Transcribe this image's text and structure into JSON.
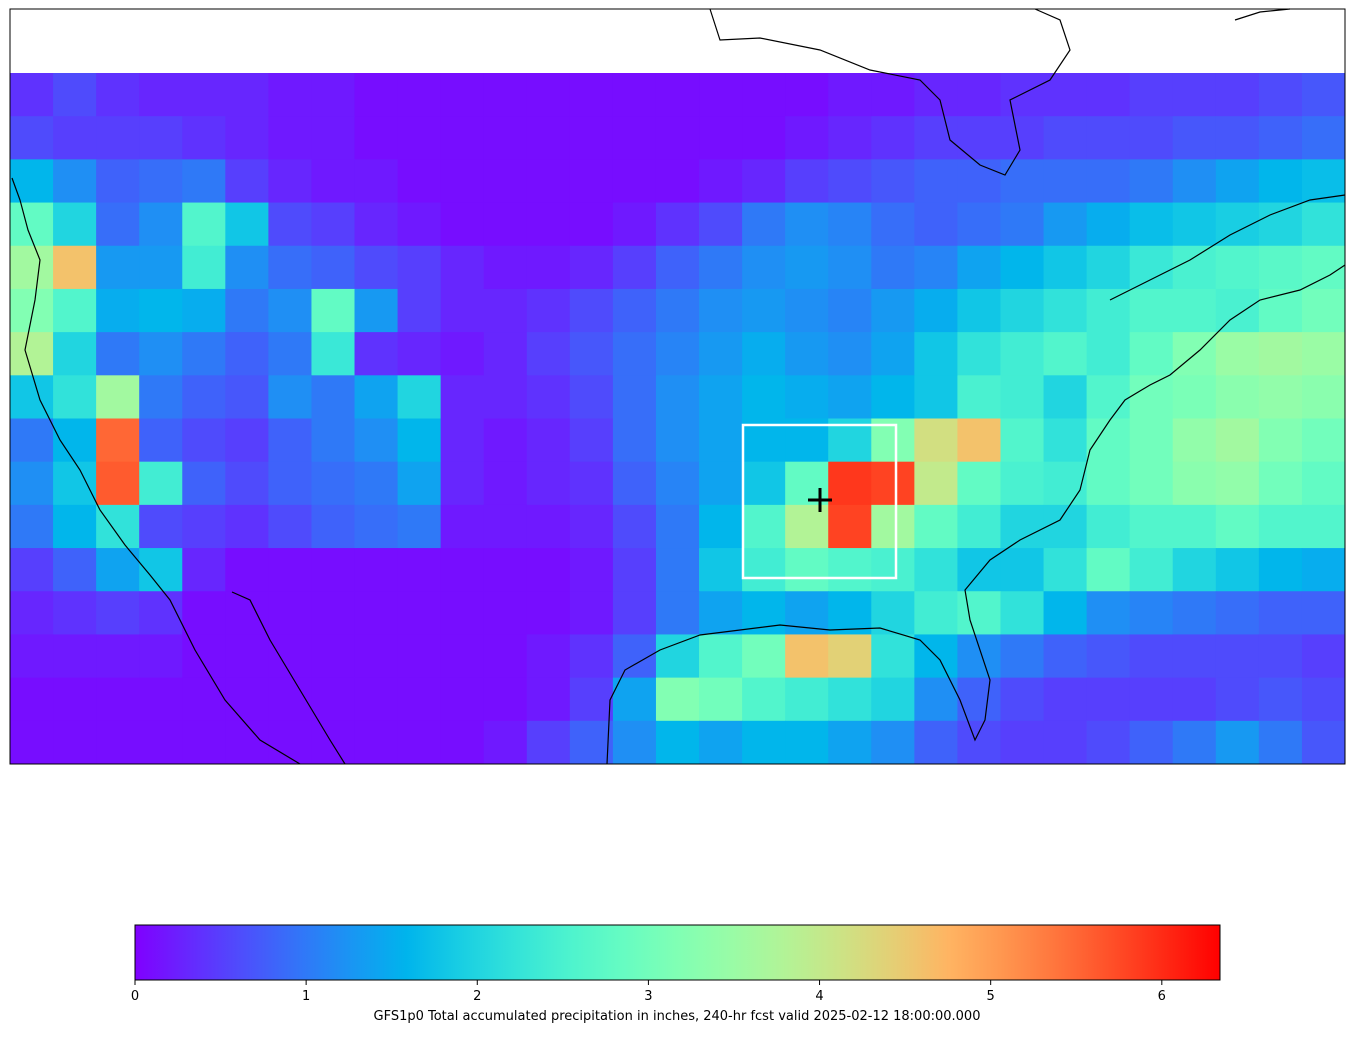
{
  "map": {
    "type": "heatmap",
    "colormap": "rainbow",
    "clim": [
      0,
      6.34
    ],
    "values": [
      [
        0.4,
        0.6,
        0.4,
        0.3,
        0.3,
        0.3,
        0.2,
        0.2,
        0.1,
        0.1,
        0.1,
        0.1,
        0.1,
        0.1,
        0.1,
        0.1,
        0.1,
        0.1,
        0.1,
        0.2,
        0.2,
        0.3,
        0.3,
        0.4,
        0.4,
        0.4,
        0.5,
        0.5,
        0.5,
        0.6,
        0.7
      ],
      [
        0.6,
        0.5,
        0.5,
        0.5,
        0.4,
        0.3,
        0.2,
        0.2,
        0.1,
        0.1,
        0.1,
        0.1,
        0.1,
        0.1,
        0.1,
        0.1,
        0.1,
        0.1,
        0.2,
        0.3,
        0.4,
        0.5,
        0.5,
        0.5,
        0.6,
        0.6,
        0.6,
        0.7,
        0.7,
        0.8,
        0.9
      ],
      [
        1.6,
        1.2,
        0.8,
        0.9,
        1.0,
        0.5,
        0.3,
        0.2,
        0.2,
        0.1,
        0.1,
        0.1,
        0.1,
        0.1,
        0.1,
        0.1,
        0.2,
        0.3,
        0.5,
        0.6,
        0.7,
        0.8,
        0.8,
        0.9,
        0.9,
        0.9,
        1.0,
        1.2,
        1.4,
        1.6,
        1.7
      ],
      [
        2.8,
        2.0,
        0.9,
        1.2,
        2.6,
        1.8,
        0.6,
        0.5,
        0.3,
        0.2,
        0.1,
        0.1,
        0.1,
        0.1,
        0.2,
        0.4,
        0.6,
        1.0,
        1.2,
        1.1,
        0.9,
        0.8,
        0.9,
        1.0,
        1.3,
        1.5,
        1.7,
        1.8,
        1.9,
        2.0,
        2.2
      ],
      [
        3.6,
        4.6,
        1.3,
        1.3,
        2.4,
        1.2,
        0.9,
        0.8,
        0.6,
        0.5,
        0.3,
        0.2,
        0.2,
        0.3,
        0.5,
        0.8,
        1.0,
        1.2,
        1.3,
        1.2,
        1.0,
        1.1,
        1.4,
        1.6,
        1.8,
        2.0,
        2.3,
        2.5,
        2.6,
        2.7,
        2.8
      ],
      [
        3.2,
        2.6,
        1.5,
        1.6,
        1.5,
        1.0,
        1.2,
        2.8,
        1.3,
        0.5,
        0.3,
        0.3,
        0.4,
        0.6,
        0.8,
        1.0,
        1.2,
        1.3,
        1.2,
        1.1,
        1.3,
        1.5,
        1.8,
        2.0,
        2.2,
        2.4,
        2.6,
        2.6,
        2.5,
        2.8,
        3.0
      ],
      [
        3.8,
        2.0,
        1.0,
        1.2,
        1.0,
        0.8,
        1.0,
        2.3,
        0.4,
        0.3,
        0.2,
        0.3,
        0.5,
        0.7,
        0.9,
        1.1,
        1.3,
        1.5,
        1.3,
        1.2,
        1.4,
        1.8,
        2.2,
        2.4,
        2.6,
        2.4,
        2.8,
        3.2,
        3.5,
        3.6,
        3.5
      ],
      [
        1.8,
        2.2,
        3.6,
        1.0,
        0.8,
        0.7,
        1.2,
        1.0,
        1.4,
        2.0,
        0.3,
        0.3,
        0.4,
        0.6,
        0.9,
        1.2,
        1.4,
        1.6,
        1.5,
        1.4,
        1.6,
        1.8,
        2.5,
        2.4,
        2.0,
        2.6,
        3.0,
        3.1,
        3.3,
        3.4,
        3.3
      ],
      [
        1.0,
        1.6,
        5.5,
        0.8,
        0.6,
        0.5,
        0.8,
        1.0,
        1.2,
        1.6,
        0.3,
        0.2,
        0.3,
        0.5,
        0.9,
        1.2,
        1.4,
        1.6,
        1.6,
        2.0,
        3.2,
        4.2,
        4.6,
        2.6,
        2.2,
        2.8,
        3.0,
        3.4,
        3.6,
        3.2,
        3.0
      ],
      [
        1.2,
        1.8,
        5.6,
        2.4,
        0.8,
        0.6,
        0.8,
        0.9,
        1.0,
        1.4,
        0.3,
        0.2,
        0.3,
        0.4,
        0.8,
        1.1,
        1.4,
        1.8,
        2.8,
        5.9,
        5.8,
        4.0,
        2.8,
        2.5,
        2.4,
        2.8,
        3.0,
        3.3,
        3.4,
        3.0,
        2.8
      ],
      [
        1.0,
        1.6,
        2.2,
        0.6,
        0.5,
        0.4,
        0.6,
        0.8,
        0.9,
        1.0,
        0.2,
        0.2,
        0.2,
        0.3,
        0.6,
        1.0,
        1.6,
        2.6,
        3.8,
        5.8,
        3.6,
        2.8,
        2.4,
        2.0,
        2.0,
        2.4,
        2.6,
        2.6,
        2.8,
        2.6,
        2.6
      ],
      [
        0.5,
        0.8,
        1.4,
        1.8,
        0.3,
        0.1,
        0.1,
        0.1,
        0.1,
        0.1,
        0.1,
        0.1,
        0.1,
        0.2,
        0.5,
        1.0,
        1.8,
        2.4,
        2.8,
        2.6,
        2.5,
        2.2,
        1.8,
        1.8,
        2.2,
        2.8,
        2.4,
        2.0,
        1.8,
        1.6,
        1.5
      ],
      [
        0.3,
        0.4,
        0.5,
        0.4,
        0.1,
        0.1,
        0.1,
        0.1,
        0.1,
        0.1,
        0.1,
        0.1,
        0.1,
        0.2,
        0.5,
        1.0,
        1.4,
        1.6,
        1.4,
        1.6,
        2.0,
        2.4,
        2.6,
        2.2,
        1.6,
        1.2,
        1.1,
        1.0,
        0.9,
        0.8,
        0.8
      ],
      [
        0.2,
        0.2,
        0.2,
        0.2,
        0.1,
        0.1,
        0.1,
        0.1,
        0.1,
        0.1,
        0.1,
        0.1,
        0.2,
        0.4,
        0.8,
        2.0,
        2.6,
        3.0,
        4.6,
        4.4,
        2.2,
        1.6,
        1.2,
        1.0,
        0.8,
        0.7,
        0.6,
        0.6,
        0.6,
        0.6,
        0.5
      ],
      [
        0.1,
        0.1,
        0.1,
        0.1,
        0.1,
        0.1,
        0.1,
        0.1,
        0.1,
        0.1,
        0.1,
        0.1,
        0.2,
        0.5,
        1.4,
        3.2,
        3.0,
        2.6,
        2.4,
        2.2,
        2.0,
        1.2,
        0.8,
        0.6,
        0.5,
        0.5,
        0.5,
        0.5,
        0.6,
        0.7,
        0.6
      ],
      [
        0.1,
        0.1,
        0.1,
        0.1,
        0.1,
        0.1,
        0.1,
        0.1,
        0.1,
        0.1,
        0.1,
        0.2,
        0.5,
        0.8,
        1.2,
        1.6,
        1.4,
        1.6,
        1.6,
        1.4,
        1.2,
        0.8,
        0.6,
        0.5,
        0.5,
        0.6,
        0.8,
        1.0,
        1.3,
        1.0,
        0.7
      ]
    ]
  },
  "colorbar": {
    "ticks": [
      0,
      1,
      2,
      3,
      4,
      5,
      6
    ],
    "label": "GFS1p0 Total accumulated precipitation in inches, 240-hr fcst valid 2025-02-12 18:00:00.000"
  }
}
